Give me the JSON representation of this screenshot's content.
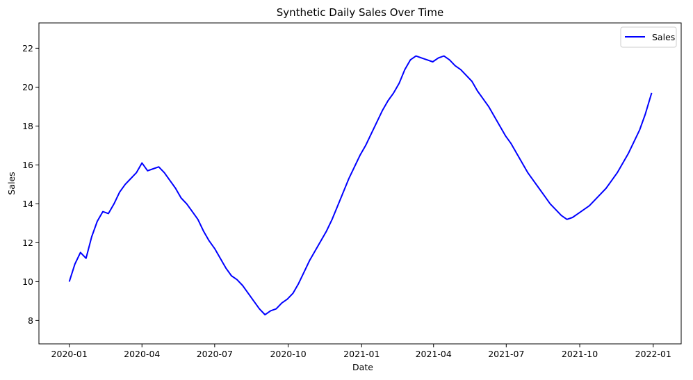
{
  "chart_data": {
    "type": "line",
    "title": "Synthetic Daily Sales Over Time",
    "xlabel": "Date",
    "ylabel": "Sales",
    "x_tick_labels": [
      "2020-01",
      "2020-04",
      "2020-07",
      "2020-10",
      "2021-01",
      "2021-04",
      "2021-07",
      "2021-10",
      "2022-01"
    ],
    "x_ticks": [
      "2020-01-01",
      "2020-04-01",
      "2020-07-01",
      "2020-10-01",
      "2021-01-01",
      "2021-04-01",
      "2021-07-01",
      "2021-10-01",
      "2022-01-01"
    ],
    "y_ticks": [
      8,
      10,
      12,
      14,
      16,
      18,
      20,
      22
    ],
    "xlim": [
      "2019-11-24",
      "2022-02-05"
    ],
    "ylim": [
      6.8,
      23.3
    ],
    "grid": false,
    "legend_position": "upper right",
    "series": [
      {
        "name": "Sales",
        "color": "#0000ff",
        "x": [
          "2020-01-01",
          "2020-01-08",
          "2020-01-15",
          "2020-01-22",
          "2020-01-29",
          "2020-02-05",
          "2020-02-12",
          "2020-02-19",
          "2020-02-26",
          "2020-03-04",
          "2020-03-11",
          "2020-03-18",
          "2020-03-25",
          "2020-04-01",
          "2020-04-08",
          "2020-04-15",
          "2020-04-22",
          "2020-04-29",
          "2020-05-06",
          "2020-05-13",
          "2020-05-20",
          "2020-05-27",
          "2020-06-03",
          "2020-06-10",
          "2020-06-17",
          "2020-06-24",
          "2020-07-01",
          "2020-07-08",
          "2020-07-15",
          "2020-07-22",
          "2020-07-29",
          "2020-08-05",
          "2020-08-12",
          "2020-08-19",
          "2020-08-26",
          "2020-09-02",
          "2020-09-09",
          "2020-09-16",
          "2020-09-23",
          "2020-09-30",
          "2020-10-07",
          "2020-10-14",
          "2020-10-21",
          "2020-10-28",
          "2020-11-04",
          "2020-11-11",
          "2020-11-18",
          "2020-11-25",
          "2020-12-02",
          "2020-12-09",
          "2020-12-16",
          "2020-12-23",
          "2020-12-30",
          "2021-01-06",
          "2021-01-13",
          "2021-01-20",
          "2021-01-27",
          "2021-02-03",
          "2021-02-10",
          "2021-02-17",
          "2021-02-24",
          "2021-03-03",
          "2021-03-10",
          "2021-03-17",
          "2021-03-24",
          "2021-03-31",
          "2021-04-07",
          "2021-04-14",
          "2021-04-21",
          "2021-04-28",
          "2021-05-05",
          "2021-05-12",
          "2021-05-19",
          "2021-05-26",
          "2021-06-02",
          "2021-06-09",
          "2021-06-16",
          "2021-06-23",
          "2021-06-30",
          "2021-07-07",
          "2021-07-14",
          "2021-07-21",
          "2021-07-28",
          "2021-08-04",
          "2021-08-11",
          "2021-08-18",
          "2021-08-25",
          "2021-09-01",
          "2021-09-08",
          "2021-09-15",
          "2021-09-22",
          "2021-09-29",
          "2021-10-06",
          "2021-10-13",
          "2021-10-20",
          "2021-10-27",
          "2021-11-03",
          "2021-11-10",
          "2021-11-17",
          "2021-11-24",
          "2021-12-01",
          "2021-12-08",
          "2021-12-15",
          "2021-12-22",
          "2021-12-30"
        ],
        "values": [
          10.0,
          10.9,
          11.5,
          11.2,
          12.3,
          13.1,
          13.6,
          13.5,
          14.0,
          14.6,
          15.0,
          15.3,
          15.6,
          16.1,
          15.7,
          15.8,
          15.9,
          15.6,
          15.2,
          14.8,
          14.3,
          14.0,
          13.6,
          13.2,
          12.6,
          12.1,
          11.7,
          11.2,
          10.7,
          10.3,
          10.1,
          9.8,
          9.4,
          9.0,
          8.6,
          8.3,
          8.5,
          8.6,
          8.9,
          9.1,
          9.4,
          9.9,
          10.5,
          11.1,
          11.6,
          12.1,
          12.6,
          13.2,
          13.9,
          14.6,
          15.3,
          15.9,
          16.5,
          17.0,
          17.6,
          18.2,
          18.8,
          19.3,
          19.7,
          20.2,
          20.9,
          21.4,
          21.6,
          21.5,
          21.4,
          21.3,
          21.5,
          21.6,
          21.4,
          21.1,
          20.9,
          20.6,
          20.3,
          19.8,
          19.4,
          19.0,
          18.5,
          18.0,
          17.5,
          17.1,
          16.6,
          16.1,
          15.6,
          15.2,
          14.8,
          14.4,
          14.0,
          13.7,
          13.4,
          13.2,
          13.3,
          13.5,
          13.7,
          13.9,
          14.2,
          14.5,
          14.8,
          15.2,
          15.6,
          16.1,
          16.6,
          17.2,
          17.8,
          18.6,
          19.7
        ]
      }
    ]
  }
}
